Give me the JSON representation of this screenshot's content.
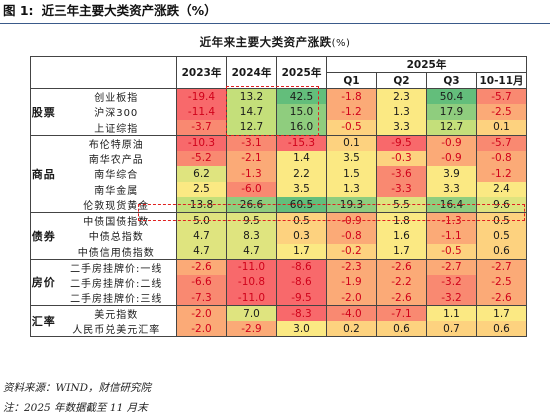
{
  "figure": {
    "number": "图 1:",
    "title": "近三年主要大类资产涨跌（%）"
  },
  "table": {
    "title": "近年来主要大类资产涨跌",
    "unit": "(%)",
    "header": {
      "years": [
        "2023年",
        "2024年",
        "2025年"
      ],
      "group_2025": "2025年",
      "quarters": [
        "Q1",
        "Q2",
        "Q3",
        "10-11月"
      ]
    },
    "groups": [
      {
        "name": "股票",
        "rows": [
          {
            "name": "创业板指",
            "values": [
              "-19.4",
              "13.2",
              "42.5",
              "-1.8",
              "2.3",
              "50.4",
              "-5.7"
            ]
          },
          {
            "name": "沪深300",
            "values": [
              "-11.4",
              "14.7",
              "15.0",
              "-1.2",
              "1.3",
              "17.9",
              "-2.5"
            ]
          },
          {
            "name": "上证综指",
            "values": [
              "-3.7",
              "12.7",
              "16.0",
              "-0.5",
              "3.3",
              "12.7",
              "0.1"
            ]
          }
        ]
      },
      {
        "name": "商品",
        "rows": [
          {
            "name": "布伦特原油",
            "values": [
              "-10.3",
              "-3.1",
              "-15.3",
              "0.1",
              "-9.5",
              "-0.9",
              "-5.7"
            ]
          },
          {
            "name": "南华农产品",
            "values": [
              "-5.2",
              "-2.1",
              "1.4",
              "3.5",
              "-0.3",
              "-0.9",
              "-0.8"
            ]
          },
          {
            "name": "南华综合",
            "values": [
              "6.2",
              "-1.3",
              "2.2",
              "1.5",
              "-3.6",
              "3.9",
              "-1.2"
            ]
          },
          {
            "name": "南华金属",
            "values": [
              "2.5",
              "-6.0",
              "3.5",
              "1.3",
              "-3.3",
              "3.3",
              "2.4"
            ]
          },
          {
            "name": "伦敦现货黄金",
            "values": [
              "13.8",
              "26.6",
              "60.5",
              "19.3",
              "5.5",
              "16.4",
              "9.6"
            ]
          }
        ]
      },
      {
        "name": "债券",
        "rows": [
          {
            "name": "中债国债指数",
            "values": [
              "5.0",
              "9.5",
              "0.5",
              "-0.9",
              "1.8",
              "-1.3",
              "0.5"
            ]
          },
          {
            "name": "中债总指数",
            "values": [
              "4.7",
              "8.3",
              "0.3",
              "-0.8",
              "1.6",
              "-1.1",
              "0.5"
            ]
          },
          {
            "name": "中债信用债指数",
            "values": [
              "4.7",
              "4.7",
              "1.7",
              "-0.2",
              "1.7",
              "-0.5",
              "0.6"
            ]
          }
        ]
      },
      {
        "name": "房价",
        "rows": [
          {
            "name": "二手房挂牌价:一线",
            "values": [
              "-2.6",
              "-11.0",
              "-8.6",
              "-2.3",
              "-2.6",
              "-2.7",
              "-2.7"
            ]
          },
          {
            "name": "二手房挂牌价:二线",
            "values": [
              "-6.6",
              "-10.8",
              "-8.6",
              "-1.9",
              "-2.2",
              "-3.2",
              "-2.5"
            ]
          },
          {
            "name": "二手房挂牌价:三线",
            "values": [
              "-7.3",
              "-11.0",
              "-9.5",
              "-2.0",
              "-2.6",
              "-3.2",
              "-2.6"
            ]
          }
        ]
      },
      {
        "name": "汇率",
        "rows": [
          {
            "name": "美元指数",
            "values": [
              "-2.0",
              "7.0",
              "-8.3",
              "-4.0",
              "-7.1",
              "1.1",
              "1.7"
            ]
          },
          {
            "name": "人民币兑美元汇率",
            "values": [
              "-2.0",
              "-2.9",
              "3.0",
              "0.2",
              "0.6",
              "0.7",
              "0.6"
            ]
          }
        ]
      }
    ]
  },
  "colors": {
    "dark_green": "#63be7b",
    "green": "#8fcd7e",
    "light_green": "#c4df7a",
    "yellow_green": "#dfe47f",
    "yellow": "#fbe983",
    "light_orange": "#fdd27f",
    "orange": "#fbaa77",
    "red_orange": "#f98971",
    "red": "#f8696b",
    "negative_text": "#d0021b",
    "highlight_border": "#e02020"
  },
  "footer": {
    "source": "资料来源：WIND，财信研究院",
    "note": "注：2025 年数据截至 11 月末"
  }
}
